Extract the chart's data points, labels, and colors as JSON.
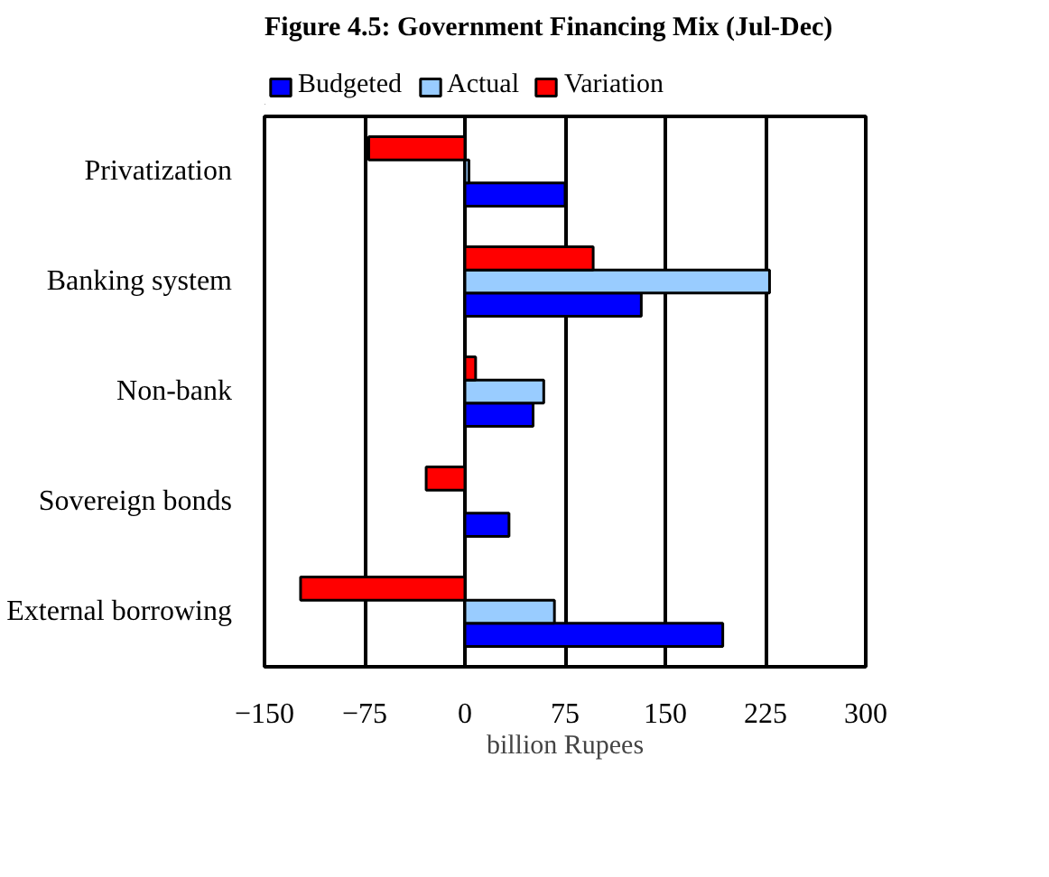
{
  "chart_data": {
    "type": "bar",
    "orientation": "horizontal",
    "title": "Figure 4.5: Government Financing Mix (Jul-Dec)",
    "xlabel": "billion Rupees",
    "categories": [
      "Privatization",
      "Banking system",
      "Non-bank",
      "Sovereign bonds",
      "External borrowing"
    ],
    "series": [
      {
        "name": "Budgeted",
        "color": "#0000ff",
        "values": [
          75,
          132,
          51,
          33,
          193
        ]
      },
      {
        "name": "Actual",
        "color": "#99ccff",
        "values": [
          3,
          228,
          59,
          null,
          67
        ]
      },
      {
        "name": "Variation",
        "color": "#ff0000",
        "values": [
          -72,
          96,
          8,
          -29,
          -123
        ]
      }
    ],
    "xlim": [
      -150,
      300
    ],
    "xticks": [
      -150,
      -75,
      0,
      75,
      150,
      225,
      300
    ],
    "grid": "x",
    "legend": "top"
  }
}
